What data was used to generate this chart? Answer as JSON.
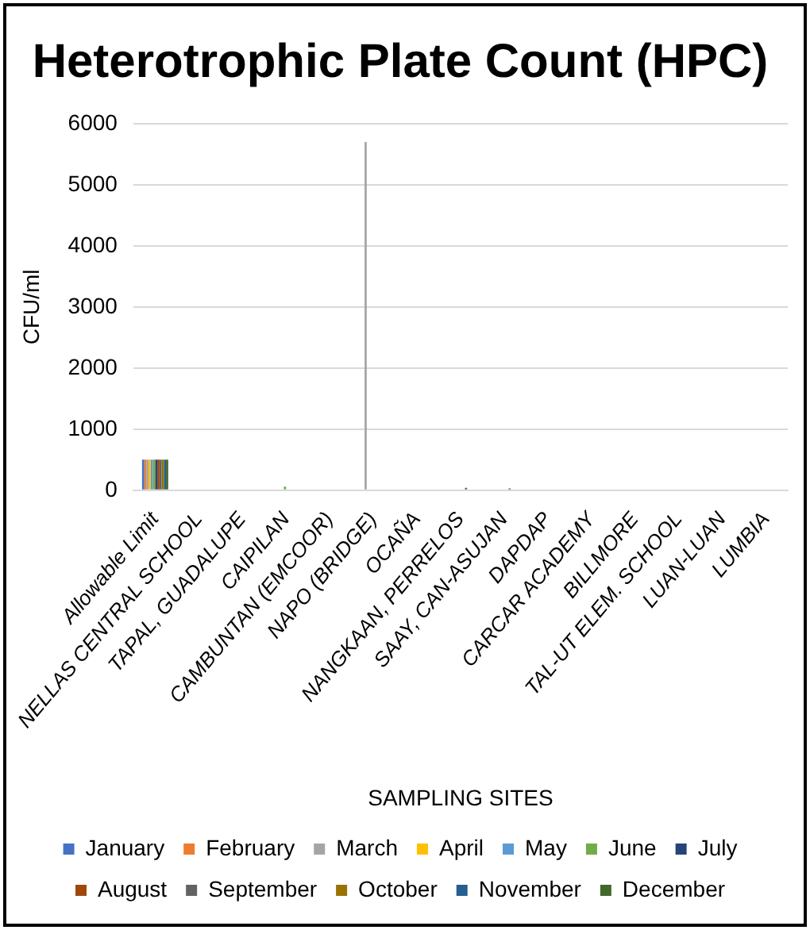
{
  "chart_data": {
    "type": "bar",
    "title": "Heterotrophic Plate Count (HPC)",
    "xlabel": "SAMPLING SITES",
    "ylabel": "CFU/ml",
    "categories": [
      "Allowable Limit",
      "NELLAS CENTRAL SCHOOL",
      "TAPAL, GUADALUPE",
      "CAIPILAN",
      "CAMBUNTAN (EMCOOR)",
      "NAPO (BRIDGE)",
      "OCAÑA",
      "NANGKAAN, PERRELOS",
      "SAAY, CAN-ASUJAN",
      "DAPDAP",
      "CARCAR ACADEMY",
      "BILLMORE",
      "TAL-UT ELEM. SCHOOL",
      "LUAN-LUAN",
      "LUMBIA"
    ],
    "series": [
      {
        "name": "January",
        "color": "#4472c4",
        "values": [
          500,
          0,
          0,
          0,
          0,
          0,
          0,
          0,
          0,
          0,
          0,
          0,
          0,
          0,
          0
        ]
      },
      {
        "name": "February",
        "color": "#ed7d31",
        "values": [
          500,
          0,
          0,
          0,
          0,
          0,
          0,
          0,
          0,
          0,
          0,
          0,
          0,
          0,
          0
        ]
      },
      {
        "name": "March",
        "color": "#a5a5a5",
        "values": [
          500,
          0,
          0,
          0,
          0,
          5700,
          0,
          0,
          0,
          0,
          0,
          0,
          0,
          0,
          0
        ]
      },
      {
        "name": "April",
        "color": "#ffc000",
        "values": [
          500,
          0,
          0,
          0,
          0,
          0,
          0,
          0,
          0,
          0,
          0,
          0,
          0,
          0,
          0
        ]
      },
      {
        "name": "May",
        "color": "#5b9bd5",
        "values": [
          500,
          0,
          0,
          0,
          0,
          0,
          0,
          0,
          0,
          0,
          0,
          0,
          0,
          0,
          0
        ]
      },
      {
        "name": "June",
        "color": "#70ad47",
        "values": [
          500,
          0,
          0,
          60,
          0,
          0,
          0,
          0,
          0,
          0,
          0,
          0,
          0,
          0,
          0
        ]
      },
      {
        "name": "July",
        "color": "#264478",
        "values": [
          500,
          0,
          0,
          0,
          0,
          0,
          0,
          0,
          0,
          0,
          0,
          0,
          0,
          0,
          0
        ]
      },
      {
        "name": "August",
        "color": "#9e480e",
        "values": [
          500,
          0,
          0,
          0,
          0,
          0,
          0,
          0,
          0,
          0,
          0,
          0,
          0,
          0,
          0
        ]
      },
      {
        "name": "September",
        "color": "#636363",
        "values": [
          500,
          0,
          0,
          0,
          0,
          0,
          0,
          40,
          30,
          0,
          0,
          0,
          0,
          0,
          0
        ]
      },
      {
        "name": "October",
        "color": "#997300",
        "values": [
          500,
          0,
          0,
          0,
          0,
          0,
          0,
          0,
          0,
          0,
          0,
          0,
          0,
          0,
          0
        ]
      },
      {
        "name": "November",
        "color": "#255e91",
        "values": [
          500,
          0,
          0,
          0,
          0,
          0,
          0,
          0,
          0,
          0,
          0,
          0,
          0,
          0,
          0
        ]
      },
      {
        "name": "December",
        "color": "#43682b",
        "values": [
          500,
          0,
          0,
          0,
          0,
          0,
          0,
          0,
          0,
          0,
          0,
          0,
          0,
          0,
          0
        ]
      }
    ],
    "ylim": [
      0,
      6000
    ],
    "yticks": [
      0,
      1000,
      2000,
      3000,
      4000,
      5000,
      6000
    ],
    "grid": "y",
    "legend": "bottom"
  }
}
